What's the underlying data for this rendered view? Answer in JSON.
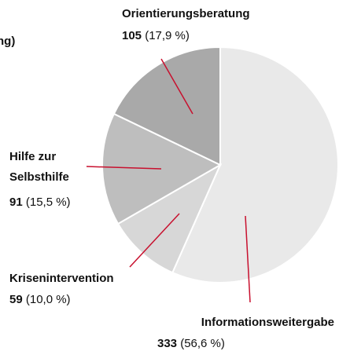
{
  "chart_data": {
    "type": "pie",
    "title": "ng)",
    "categories": [
      "Informationsweitergabe",
      "Krisenintervention",
      "Hilfe zur Selbsthilfe",
      "Orientierungsberatung"
    ],
    "values": [
      333,
      59,
      91,
      105
    ],
    "shares": [
      56.6,
      10.0,
      15.5,
      17.9
    ],
    "share_labels": [
      "(56,6 %)",
      "(10,0 %)",
      "(15,5 %)",
      "(17,9 %)"
    ],
    "colors": [
      "#e9e9e9",
      "#d7d7d7",
      "#bebebe",
      "#a9a9a9"
    ],
    "leader_color": "#c8102e"
  }
}
